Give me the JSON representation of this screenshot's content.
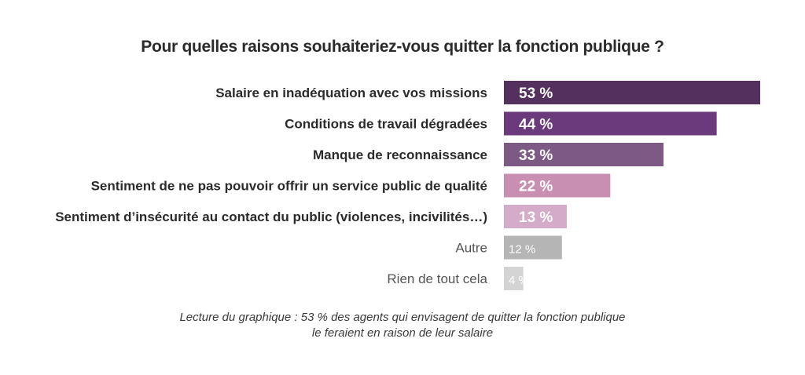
{
  "chart_data": {
    "type": "bar",
    "orientation": "horizontal",
    "title": "Pour quelles raisons souhaiteriez-vous quitter la fonction publique ?",
    "categories": [
      "Salaire en inadéquation avec vos missions",
      "Conditions de travail dégradées",
      "Manque de reconnaissance",
      "Sentiment de ne pas pouvoir offrir un service public de qualité",
      "Sentiment d’insécurité au contact du public (violences, incivilités…)",
      "Autre",
      "Rien de tout cela"
    ],
    "values": [
      53,
      44,
      33,
      22,
      13,
      12,
      4
    ],
    "value_labels": [
      "53 %",
      "44 %",
      "33 %",
      "22 %",
      "13 %",
      "12 %",
      "4 %"
    ],
    "colors": [
      "#54305f",
      "#6a3a7d",
      "#7d5a86",
      "#c98fb2",
      "#d4abc8",
      "#b5b5b5",
      "#d4d4d4"
    ],
    "emphasized": [
      true,
      true,
      true,
      true,
      true,
      false,
      false
    ],
    "xlim": [
      0,
      53
    ],
    "grid": false,
    "legend": "none"
  },
  "caption": {
    "line1": "Lecture du graphique : 53 % des agents qui envisagent de quitter la fonction publique",
    "line2": "le feraient en raison de leur salaire"
  }
}
